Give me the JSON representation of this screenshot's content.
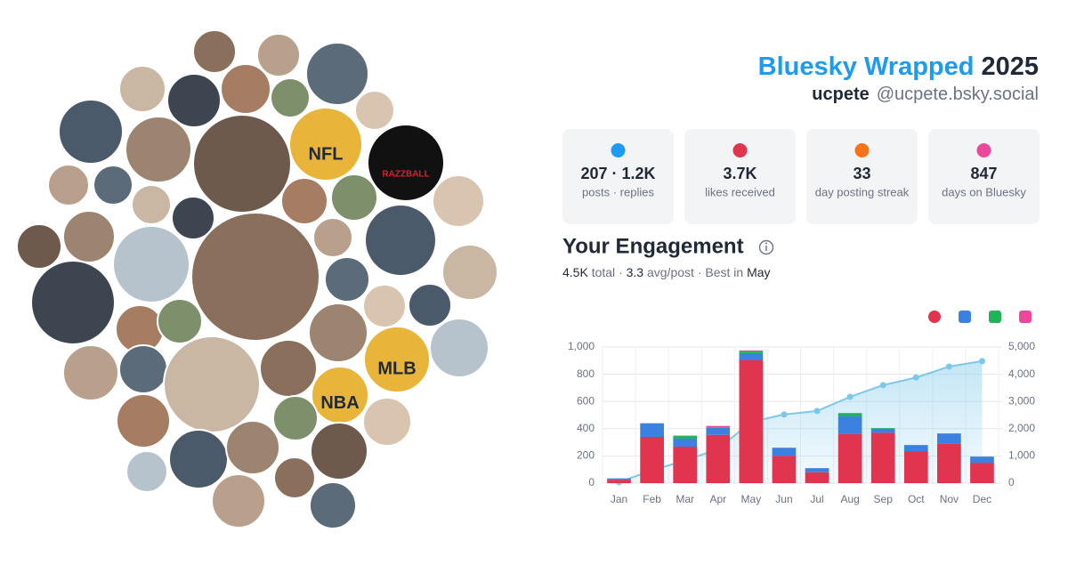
{
  "header": {
    "title": "Bluesky Wrapped",
    "year": "2025",
    "username": "ucpete",
    "handle": "@ucpete.bsky.social"
  },
  "avatar_labels": [
    "NFL",
    "RAZZBALL",
    "MLB",
    "NBA"
  ],
  "stats": [
    {
      "value": "207 · 1.2K",
      "label": "posts · replies"
    },
    {
      "value": "3.7K",
      "label": "likes received"
    },
    {
      "value": "33",
      "label": "day posting streak"
    },
    {
      "value": "847",
      "label": "days on Bluesky"
    }
  ],
  "engagement": {
    "title": "Your Engagement",
    "total": "4.5K",
    "total_label": "total",
    "separator": "·",
    "avg": "3.3",
    "avg_label": "avg/post",
    "best_label": "Best in",
    "best": "May"
  },
  "chart_data": {
    "type": "bar",
    "stacked": true,
    "grid": true,
    "categories": [
      "Jan",
      "Feb",
      "Mar",
      "Apr",
      "May",
      "Jun",
      "Jul",
      "Aug",
      "Sep",
      "Oct",
      "Nov",
      "Dec"
    ],
    "series": [
      {
        "color": "#e0344f",
        "values": [
          25,
          340,
          268,
          355,
          905,
          200,
          80,
          360,
          370,
          235,
          290,
          150
        ]
      },
      {
        "color": "#3b82e0",
        "values": [
          10,
          100,
          59,
          55,
          50,
          60,
          30,
          130,
          30,
          45,
          75,
          45
        ]
      },
      {
        "color": "#22b35a",
        "values": [
          0,
          0,
          22,
          0,
          15,
          0,
          0,
          25,
          5,
          0,
          0,
          0
        ]
      },
      {
        "color": "#ec4899",
        "values": [
          0,
          0,
          0,
          10,
          5,
          0,
          0,
          0,
          0,
          0,
          0,
          0
        ]
      },
      {
        "color": "#7cc8ec",
        "axis": "y2",
        "values": [
          35,
          470,
          830,
          1250,
          2250,
          2520,
          2650,
          3170,
          3600,
          3880,
          4280,
          4480
        ]
      }
    ],
    "ylim": [
      0,
      1000
    ],
    "yticks": [
      0,
      200,
      400,
      600,
      800,
      {
        "value": 1000,
        "label": "1,000"
      }
    ],
    "y2lim": [
      0,
      5000
    ],
    "y2ticks": [
      0,
      {
        "value": 1000,
        "label": "1,000"
      },
      {
        "value": 2000,
        "label": "2,000"
      },
      {
        "value": 3000,
        "label": "3,000"
      },
      {
        "value": 4000,
        "label": "4,000"
      },
      {
        "value": 5000,
        "label": "5,000"
      }
    ]
  }
}
